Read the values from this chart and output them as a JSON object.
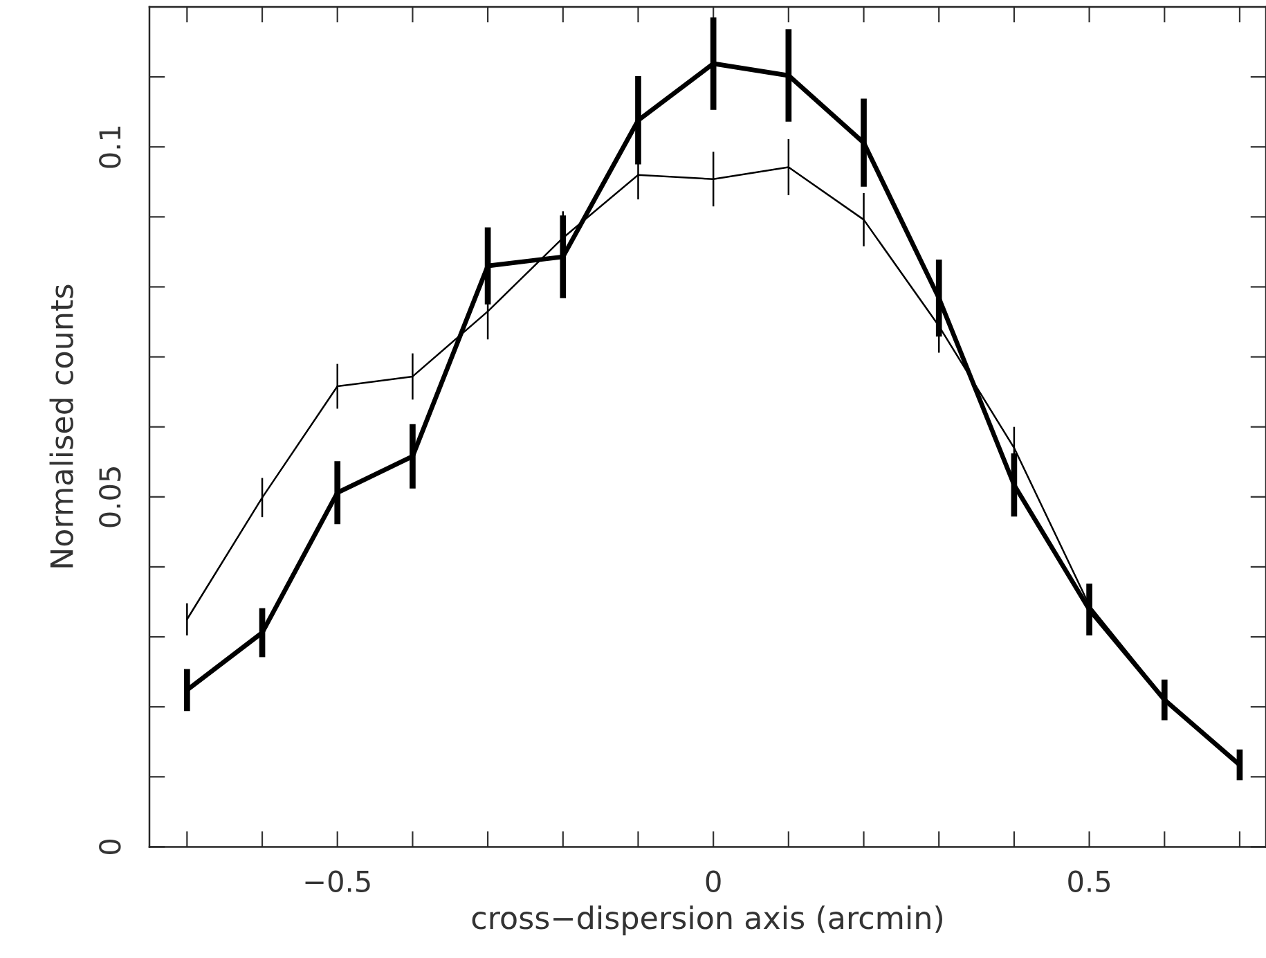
{
  "chart_data": {
    "type": "line",
    "xlabel": "cross−dispersion axis (arcmin)",
    "ylabel": "Normalised counts",
    "x": [
      -0.7,
      -0.6,
      -0.5,
      -0.4,
      -0.3,
      -0.2,
      -0.1,
      0,
      0.1,
      0.2,
      0.3,
      0.4,
      0.5,
      0.6,
      0.7
    ],
    "series": [
      {
        "color": "#000000",
        "values": [
          0.0325,
          0.0499,
          0.0658,
          0.0672,
          0.0765,
          0.087,
          0.096,
          0.0954,
          0.0971,
          0.0896,
          0.0744,
          0.057,
          0.0345,
          0.0212,
          0.0117
        ],
        "errors": [
          0.0023,
          0.0028,
          0.0032,
          0.0033,
          0.004,
          0.0038,
          0.0035,
          0.0039,
          0.004,
          0.0038,
          0.0038,
          0.003,
          0.0025,
          0.002,
          0.0015
        ]
      },
      {
        "color": "#000000",
        "values": [
          0.0224,
          0.0306,
          0.0506,
          0.0558,
          0.083,
          0.0843,
          0.1038,
          0.1119,
          0.1102,
          0.1006,
          0.0784,
          0.0517,
          0.0339,
          0.021,
          0.0117
        ],
        "errors": [
          0.003,
          0.0035,
          0.0045,
          0.0046,
          0.0055,
          0.0059,
          0.0063,
          0.0066,
          0.0066,
          0.0063,
          0.0055,
          0.0045,
          0.0037,
          0.0029,
          0.0022
        ]
      }
    ],
    "xlim": [
      -0.75,
      0.735
    ],
    "ylim": [
      0,
      0.12
    ],
    "xticks": [
      {
        "value": -0.7,
        "label": null
      },
      {
        "value": -0.6,
        "label": null
      },
      {
        "value": -0.5,
        "label": "−0.5"
      },
      {
        "value": -0.4,
        "label": null
      },
      {
        "value": -0.3,
        "label": null
      },
      {
        "value": -0.2,
        "label": null
      },
      {
        "value": -0.1,
        "label": null
      },
      {
        "value": 0,
        "label": "0"
      },
      {
        "value": 0.1,
        "label": null
      },
      {
        "value": 0.2,
        "label": null
      },
      {
        "value": 0.3,
        "label": null
      },
      {
        "value": 0.4,
        "label": null
      },
      {
        "value": 0.5,
        "label": "0.5"
      },
      {
        "value": 0.6,
        "label": null
      },
      {
        "value": 0.7,
        "label": null
      }
    ],
    "yticks": [
      {
        "value": 0,
        "label": "0"
      },
      {
        "value": 0.01,
        "label": null
      },
      {
        "value": 0.02,
        "label": null
      },
      {
        "value": 0.03,
        "label": null
      },
      {
        "value": 0.04,
        "label": null
      },
      {
        "value": 0.05,
        "label": "0.05"
      },
      {
        "value": 0.06,
        "label": null
      },
      {
        "value": 0.07,
        "label": null
      },
      {
        "value": 0.08,
        "label": null
      },
      {
        "value": 0.09,
        "label": null
      },
      {
        "value": 0.1,
        "label": "0.1"
      },
      {
        "value": 0.11,
        "label": null
      }
    ],
    "grid": false,
    "legend": false,
    "marker": "none",
    "line_style": "solid"
  }
}
